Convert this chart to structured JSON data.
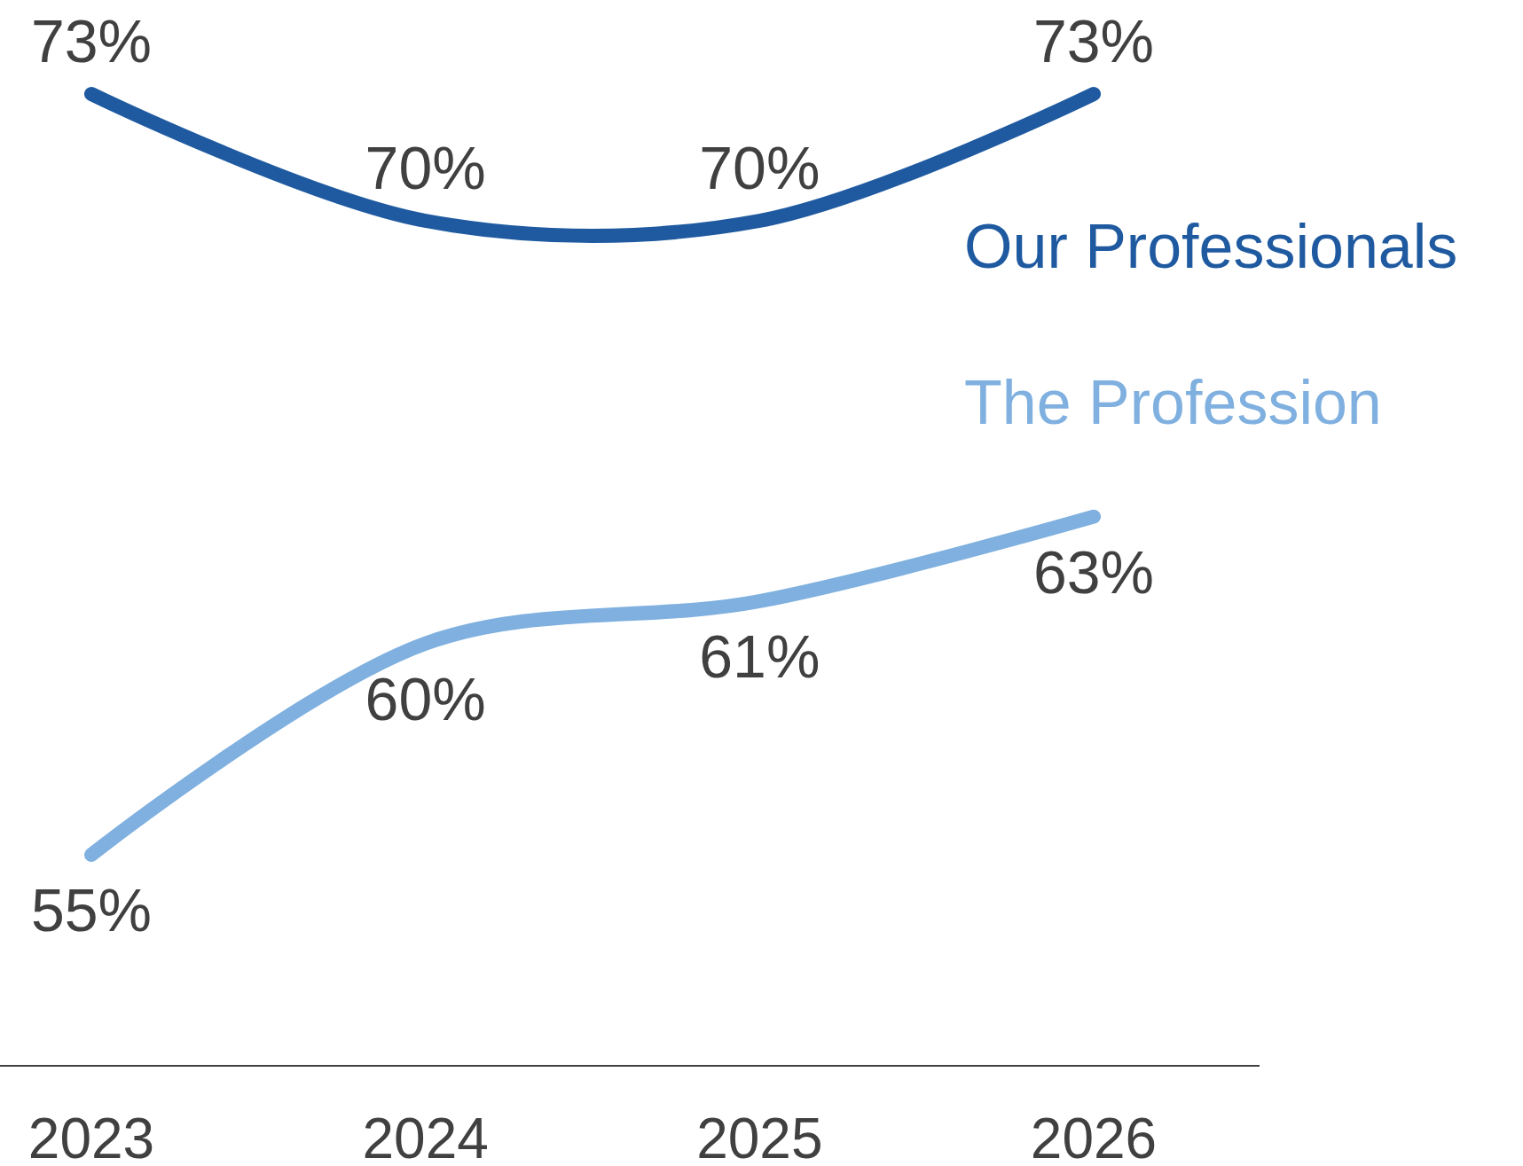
{
  "chart_data": {
    "type": "line",
    "categories": [
      "2023",
      "2024",
      "2025",
      "2026"
    ],
    "series": [
      {
        "name": "Our Professionals",
        "color": "#1f5aa0",
        "values": [
          73,
          70,
          70,
          73
        ],
        "value_labels": [
          "73%",
          "70%",
          "70%",
          "73%"
        ]
      },
      {
        "name": "The Profession",
        "color": "#7fb0df",
        "values": [
          55,
          60,
          61,
          63
        ],
        "value_labels": [
          "55%",
          "60%",
          "61%",
          "63%"
        ]
      }
    ],
    "legend": "right",
    "marker": "none",
    "line_style": "solid"
  }
}
